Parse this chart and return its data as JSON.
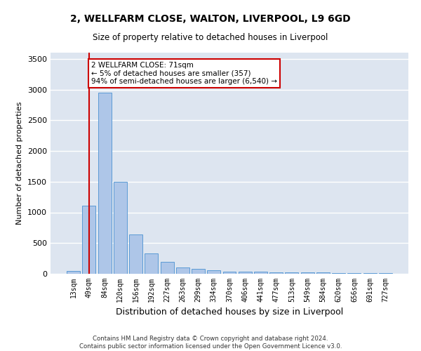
{
  "title": "2, WELLFARM CLOSE, WALTON, LIVERPOOL, L9 6GD",
  "subtitle": "Size of property relative to detached houses in Liverpool",
  "xlabel": "Distribution of detached houses by size in Liverpool",
  "ylabel": "Number of detached properties",
  "bin_labels": [
    "13sqm",
    "49sqm",
    "84sqm",
    "120sqm",
    "156sqm",
    "192sqm",
    "227sqm",
    "263sqm",
    "299sqm",
    "334sqm",
    "370sqm",
    "406sqm",
    "441sqm",
    "477sqm",
    "513sqm",
    "549sqm",
    "584sqm",
    "620sqm",
    "656sqm",
    "691sqm",
    "727sqm"
  ],
  "bar_heights": [
    50,
    1110,
    2950,
    1500,
    640,
    330,
    195,
    100,
    80,
    55,
    40,
    35,
    30,
    25,
    20,
    20,
    18,
    15,
    12,
    10,
    8
  ],
  "bar_color": "#aec6e8",
  "bar_edge_color": "#5b9bd5",
  "background_color": "#dde5f0",
  "grid_color": "#ffffff",
  "fig_background": "#ffffff",
  "vline_x": 1,
  "vline_color": "#cc0000",
  "annotation_text": "2 WELLFARM CLOSE: 71sqm\n← 5% of detached houses are smaller (357)\n94% of semi-detached houses are larger (6,540) →",
  "annotation_box_color": "#ffffff",
  "annotation_box_edge": "#cc0000",
  "ylim": [
    0,
    3600
  ],
  "yticks": [
    0,
    500,
    1000,
    1500,
    2000,
    2500,
    3000,
    3500
  ],
  "footer": "Contains HM Land Registry data © Crown copyright and database right 2024.\nContains public sector information licensed under the Open Government Licence v3.0."
}
